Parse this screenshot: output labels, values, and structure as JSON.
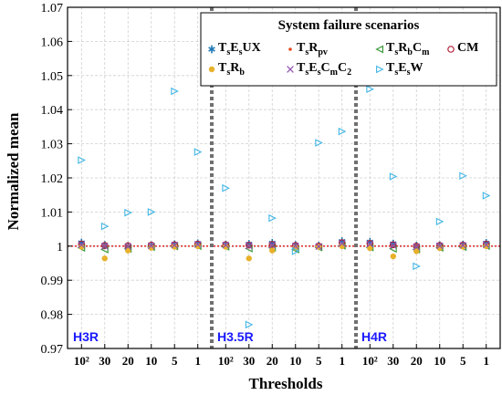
{
  "chart_data": {
    "type": "scatter",
    "title": "",
    "xlabel": "Thresholds",
    "ylabel": "Normalized mean",
    "ylim": [
      0.97,
      1.07
    ],
    "yticks": [
      "0.97",
      "0.98",
      "0.99",
      "1",
      "1.01",
      "1.02",
      "1.03",
      "1.04",
      "1.05",
      "1.06",
      "1.07"
    ],
    "grid": true,
    "reference_line": 1,
    "legend": {
      "title": "System failure scenarios",
      "placement": "top-right"
    },
    "groups": [
      {
        "label": "H3R",
        "categories": [
          "10²",
          "30",
          "20",
          "10",
          "5",
          "1"
        ]
      },
      {
        "label": "H3.5R",
        "categories": [
          "10²",
          "30",
          "20",
          "10",
          "5",
          "1"
        ]
      },
      {
        "label": "H4R",
        "categories": [
          "10²",
          "30",
          "20",
          "10",
          "5",
          "1"
        ]
      }
    ],
    "series": [
      {
        "name": "TsEsUX",
        "html": "T<sub>s</sub>E<sub>s</sub>UX",
        "marker": "asterisk",
        "color": "#1f77b4",
        "values": [
          1.001,
          1.0003,
          1.0,
          1.0002,
          1.0005,
          1.0008,
          1.0004,
          1.0006,
          1.0009,
          1.0003,
          1.0001,
          1.0014,
          1.0012,
          1.0007,
          1.0001,
          1.0002,
          1.0004,
          1.0009
        ]
      },
      {
        "name": "TsRpv",
        "html": "T<sub>s</sub>R<sub>pv</sub>",
        "marker": "dot",
        "color": "#e8491d",
        "values": [
          1.0002,
          1.0001,
          1.0,
          1.0001,
          1.0002,
          1.0003,
          1.0002,
          1.0001,
          1.0002,
          1.0001,
          1.0,
          1.0004,
          1.0003,
          1.0001,
          1.0,
          1.0001,
          1.0002,
          1.0003
        ]
      },
      {
        "name": "TsRbCm",
        "html": "T<sub>s</sub>R<sub>b</sub>C<sub>m</sub>",
        "marker": "triangle-left",
        "color": "#3a9a3a",
        "values": [
          0.9995,
          0.999,
          0.9992,
          0.9997,
          0.9999,
          1.0,
          0.9998,
          0.9993,
          0.9995,
          0.999,
          0.9996,
          1.0001,
          0.9996,
          0.9992,
          0.999,
          0.9995,
          0.9997,
          1.0
        ]
      },
      {
        "name": "CM",
        "html": "CM",
        "marker": "circle",
        "color": "#b0203a",
        "values": [
          1.0006,
          1.0002,
          1.0001,
          1.0003,
          1.0004,
          1.0006,
          1.0004,
          1.0003,
          1.0005,
          1.0002,
          1.0,
          1.001,
          1.0008,
          1.0004,
          1.0,
          1.0002,
          1.0003,
          1.0006
        ]
      },
      {
        "name": "TsRb",
        "html": "T<sub>s</sub>R<sub>b</sub>",
        "marker": "filled-circle",
        "color": "#e8b12b",
        "values": [
          0.9998,
          0.9964,
          0.9987,
          0.9995,
          0.9998,
          1.0,
          0.9998,
          0.9964,
          0.9987,
          0.9995,
          0.9998,
          1.0,
          0.9994,
          0.997,
          0.9985,
          0.9994,
          0.9998,
          1.0
        ]
      },
      {
        "name": "TsEsCmC2",
        "html": "T<sub>s</sub>E<sub>s</sub>C<sub>m</sub>C<sub>2</sub>",
        "marker": "x",
        "color": "#8e4fb0",
        "values": [
          1.0004,
          1.0,
          0.9999,
          1.0001,
          1.0003,
          1.0005,
          1.0003,
          1.0001,
          1.0003,
          1.0,
          0.9999,
          1.0008,
          1.0006,
          1.0002,
          0.9998,
          1.0001,
          1.0002,
          1.0004
        ]
      },
      {
        "name": "TsEsW",
        "html": "T<sub>s</sub>E<sub>s</sub>W",
        "marker": "triangle-right",
        "color": "#41b6e6",
        "values": [
          1.0252,
          1.0058,
          1.0098,
          1.01,
          1.0454,
          1.0276,
          1.017,
          0.977,
          1.0082,
          0.9985,
          1.0303,
          1.0336,
          1.046,
          1.0204,
          0.9941,
          1.0072,
          1.0206,
          1.0148
        ]
      }
    ]
  }
}
